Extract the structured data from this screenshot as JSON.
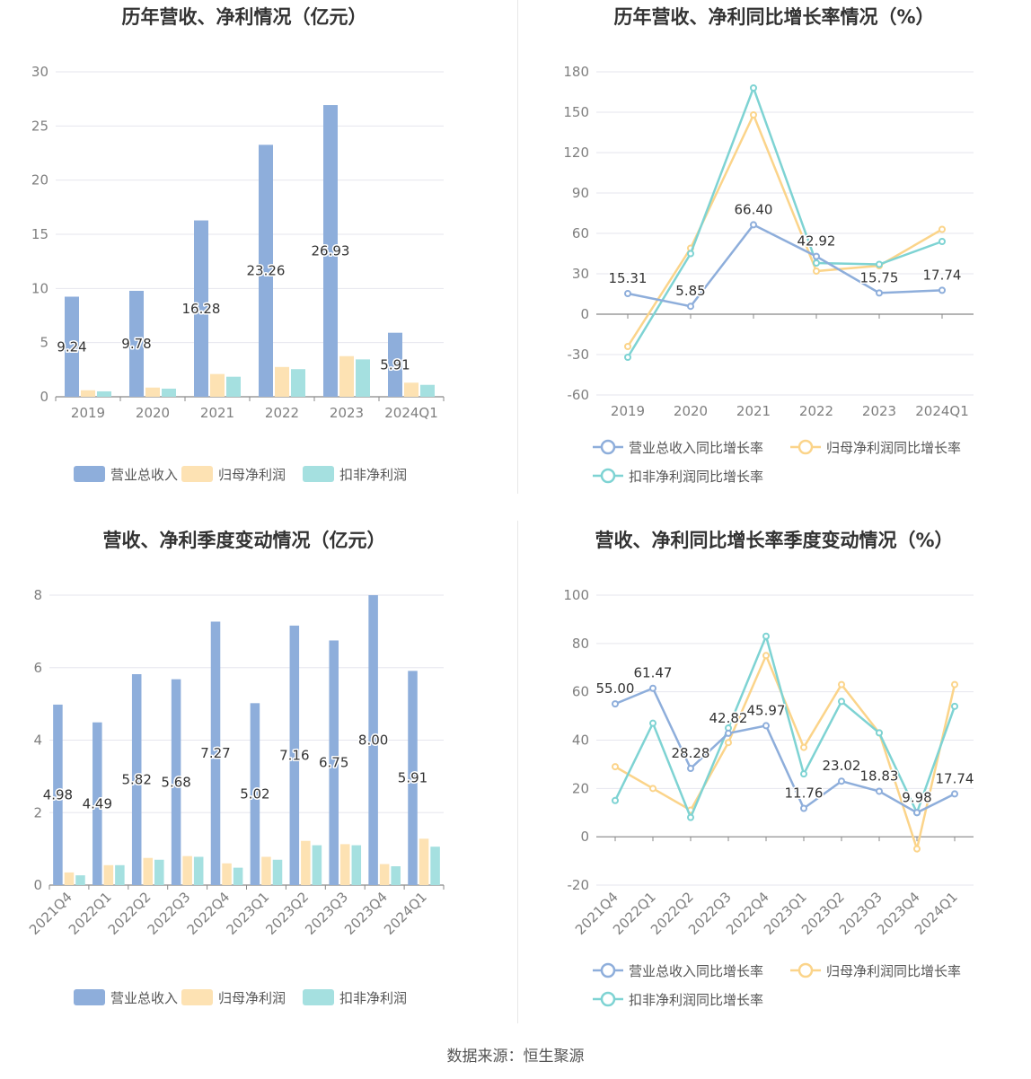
{
  "colors": {
    "revenue_bar": "#8eaedb",
    "net_bar": "#fde2b3",
    "deducted_bar": "#a5e0e0",
    "revenue_line": "#8eaedb",
    "net_line": "#fbd48a",
    "deducted_line": "#7ed3d3",
    "grid": "#e6e6ee",
    "axis": "#888888"
  },
  "charts": {
    "annual_amount": {
      "title": "历年营收、净利情况（亿元）",
      "legend": [
        "营业总收入",
        "归母净利润",
        "扣非净利润"
      ]
    },
    "annual_growth": {
      "title": "历年营收、净利同比增长率情况（%）",
      "legend": [
        "营业总收入同比增长率",
        "归母净利润同比增长率",
        "扣非净利润同比增长率"
      ]
    },
    "quarter_amount": {
      "title": "营收、净利季度变动情况（亿元）",
      "legend": [
        "营业总收入",
        "归母净利润",
        "扣非净利润"
      ]
    },
    "quarter_growth": {
      "title": "营收、净利同比增长率季度变动情况（%）",
      "legend": [
        "营业总收入同比增长率",
        "归母净利润同比增长率",
        "扣非净利润同比增长率"
      ]
    }
  },
  "chart_data": [
    {
      "type": "bar",
      "title": "历年营收、净利情况（亿元）",
      "categories": [
        "2019",
        "2020",
        "2021",
        "2022",
        "2023",
        "2024Q1"
      ],
      "ylim": [
        0,
        30
      ],
      "yticks": [
        0,
        5,
        10,
        15,
        20,
        25,
        30
      ],
      "grid": true,
      "legend_position": "bottom",
      "series": [
        {
          "name": "营业总收入",
          "values": [
            9.24,
            9.78,
            16.28,
            23.26,
            26.93,
            5.91
          ],
          "labels": [
            "9.24",
            "9.78",
            "16.28",
            "23.26",
            "26.93",
            "5.91"
          ]
        },
        {
          "name": "归母净利润",
          "values": [
            0.6,
            0.85,
            2.1,
            2.75,
            3.75,
            1.3
          ]
        },
        {
          "name": "扣非净利润",
          "values": [
            0.5,
            0.75,
            1.85,
            2.55,
            3.45,
            1.1
          ]
        }
      ]
    },
    {
      "type": "line",
      "title": "历年营收、净利同比增长率情况（%）",
      "categories": [
        "2019",
        "2020",
        "2021",
        "2022",
        "2023",
        "2024Q1"
      ],
      "ylim": [
        -60,
        180
      ],
      "yticks": [
        -60,
        -30,
        0,
        30,
        60,
        90,
        120,
        150,
        180
      ],
      "grid": true,
      "legend_position": "bottom",
      "series": [
        {
          "name": "营业总收入同比增长率",
          "values": [
            15.31,
            5.85,
            66.4,
            42.92,
            15.75,
            17.74
          ],
          "labels": [
            "15.31",
            "5.85",
            "66.40",
            "42.92",
            "15.75",
            "17.74"
          ]
        },
        {
          "name": "归母净利润同比增长率",
          "values": [
            -24,
            49,
            148,
            32,
            36,
            63
          ]
        },
        {
          "name": "扣非净利润同比增长率",
          "values": [
            -32,
            45,
            168,
            38,
            37,
            54
          ]
        }
      ]
    },
    {
      "type": "bar",
      "title": "营收、净利季度变动情况（亿元）",
      "categories": [
        "2021Q4",
        "2022Q1",
        "2022Q2",
        "2022Q3",
        "2022Q4",
        "2023Q1",
        "2023Q2",
        "2023Q3",
        "2023Q4",
        "2024Q1"
      ],
      "ylim": [
        0,
        8
      ],
      "yticks": [
        0,
        2,
        4,
        6,
        8
      ],
      "grid": true,
      "legend_position": "bottom",
      "series": [
        {
          "name": "营业总收入",
          "values": [
            4.98,
            4.49,
            5.82,
            5.68,
            7.27,
            5.02,
            7.16,
            6.75,
            8.0,
            5.91
          ],
          "labels": [
            "4.98",
            "4.49",
            "5.82",
            "5.68",
            "7.27",
            "5.02",
            "7.16",
            "6.75",
            "8.00",
            "5.91"
          ]
        },
        {
          "name": "归母净利润",
          "values": [
            0.35,
            0.55,
            0.75,
            0.8,
            0.6,
            0.78,
            1.22,
            1.13,
            0.58,
            1.28
          ]
        },
        {
          "name": "扣非净利润",
          "values": [
            0.27,
            0.55,
            0.7,
            0.78,
            0.48,
            0.7,
            1.1,
            1.1,
            0.52,
            1.06
          ]
        }
      ]
    },
    {
      "type": "line",
      "title": "营收、净利同比增长率季度变动情况（%）",
      "categories": [
        "2021Q4",
        "2022Q1",
        "2022Q2",
        "2022Q3",
        "2022Q4",
        "2023Q1",
        "2023Q2",
        "2023Q3",
        "2023Q4",
        "2024Q1"
      ],
      "ylim": [
        -20,
        100
      ],
      "yticks": [
        -20,
        0,
        20,
        40,
        60,
        80,
        100
      ],
      "grid": true,
      "legend_position": "bottom",
      "series": [
        {
          "name": "营业总收入同比增长率",
          "values": [
            55.0,
            61.47,
            28.28,
            42.82,
            45.97,
            11.76,
            23.02,
            18.83,
            9.98,
            17.74
          ],
          "labels": [
            "55.00",
            "61.47",
            "28.28",
            "42.82",
            "45.97",
            "11.76",
            "23.02",
            "18.83",
            "9.98",
            "17.74"
          ]
        },
        {
          "name": "归母净利润同比增长率",
          "values": [
            29,
            20,
            11,
            39,
            75,
            37,
            63,
            43,
            -5,
            63
          ]
        },
        {
          "name": "扣非净利润同比增长率",
          "values": [
            15,
            47,
            8,
            45,
            83,
            26,
            56,
            43,
            10,
            54
          ]
        }
      ]
    }
  ],
  "footer": {
    "source": "数据来源：恒生聚源"
  }
}
